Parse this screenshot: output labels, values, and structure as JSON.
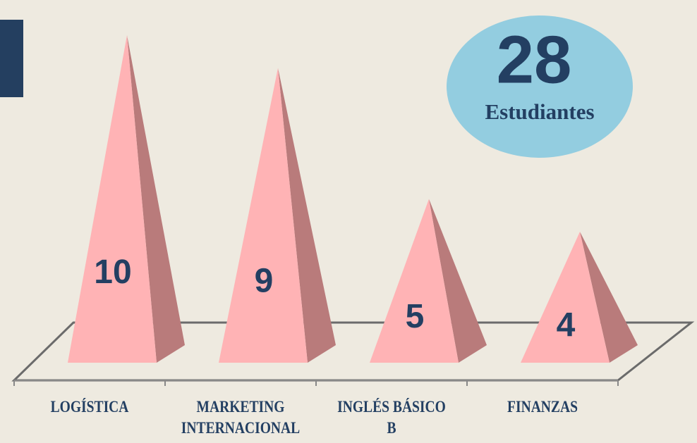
{
  "chart_data": {
    "type": "pyramid",
    "categories": [
      "LOGÍSTICA",
      "MARKETING INTERNACIONAL",
      "INGLÉS BÁSICO B",
      "FINANZAS"
    ],
    "values": [
      10,
      9,
      5,
      4
    ],
    "color": "#ffb3b5",
    "total": "28",
    "total_label": "Estudiantes"
  }
}
